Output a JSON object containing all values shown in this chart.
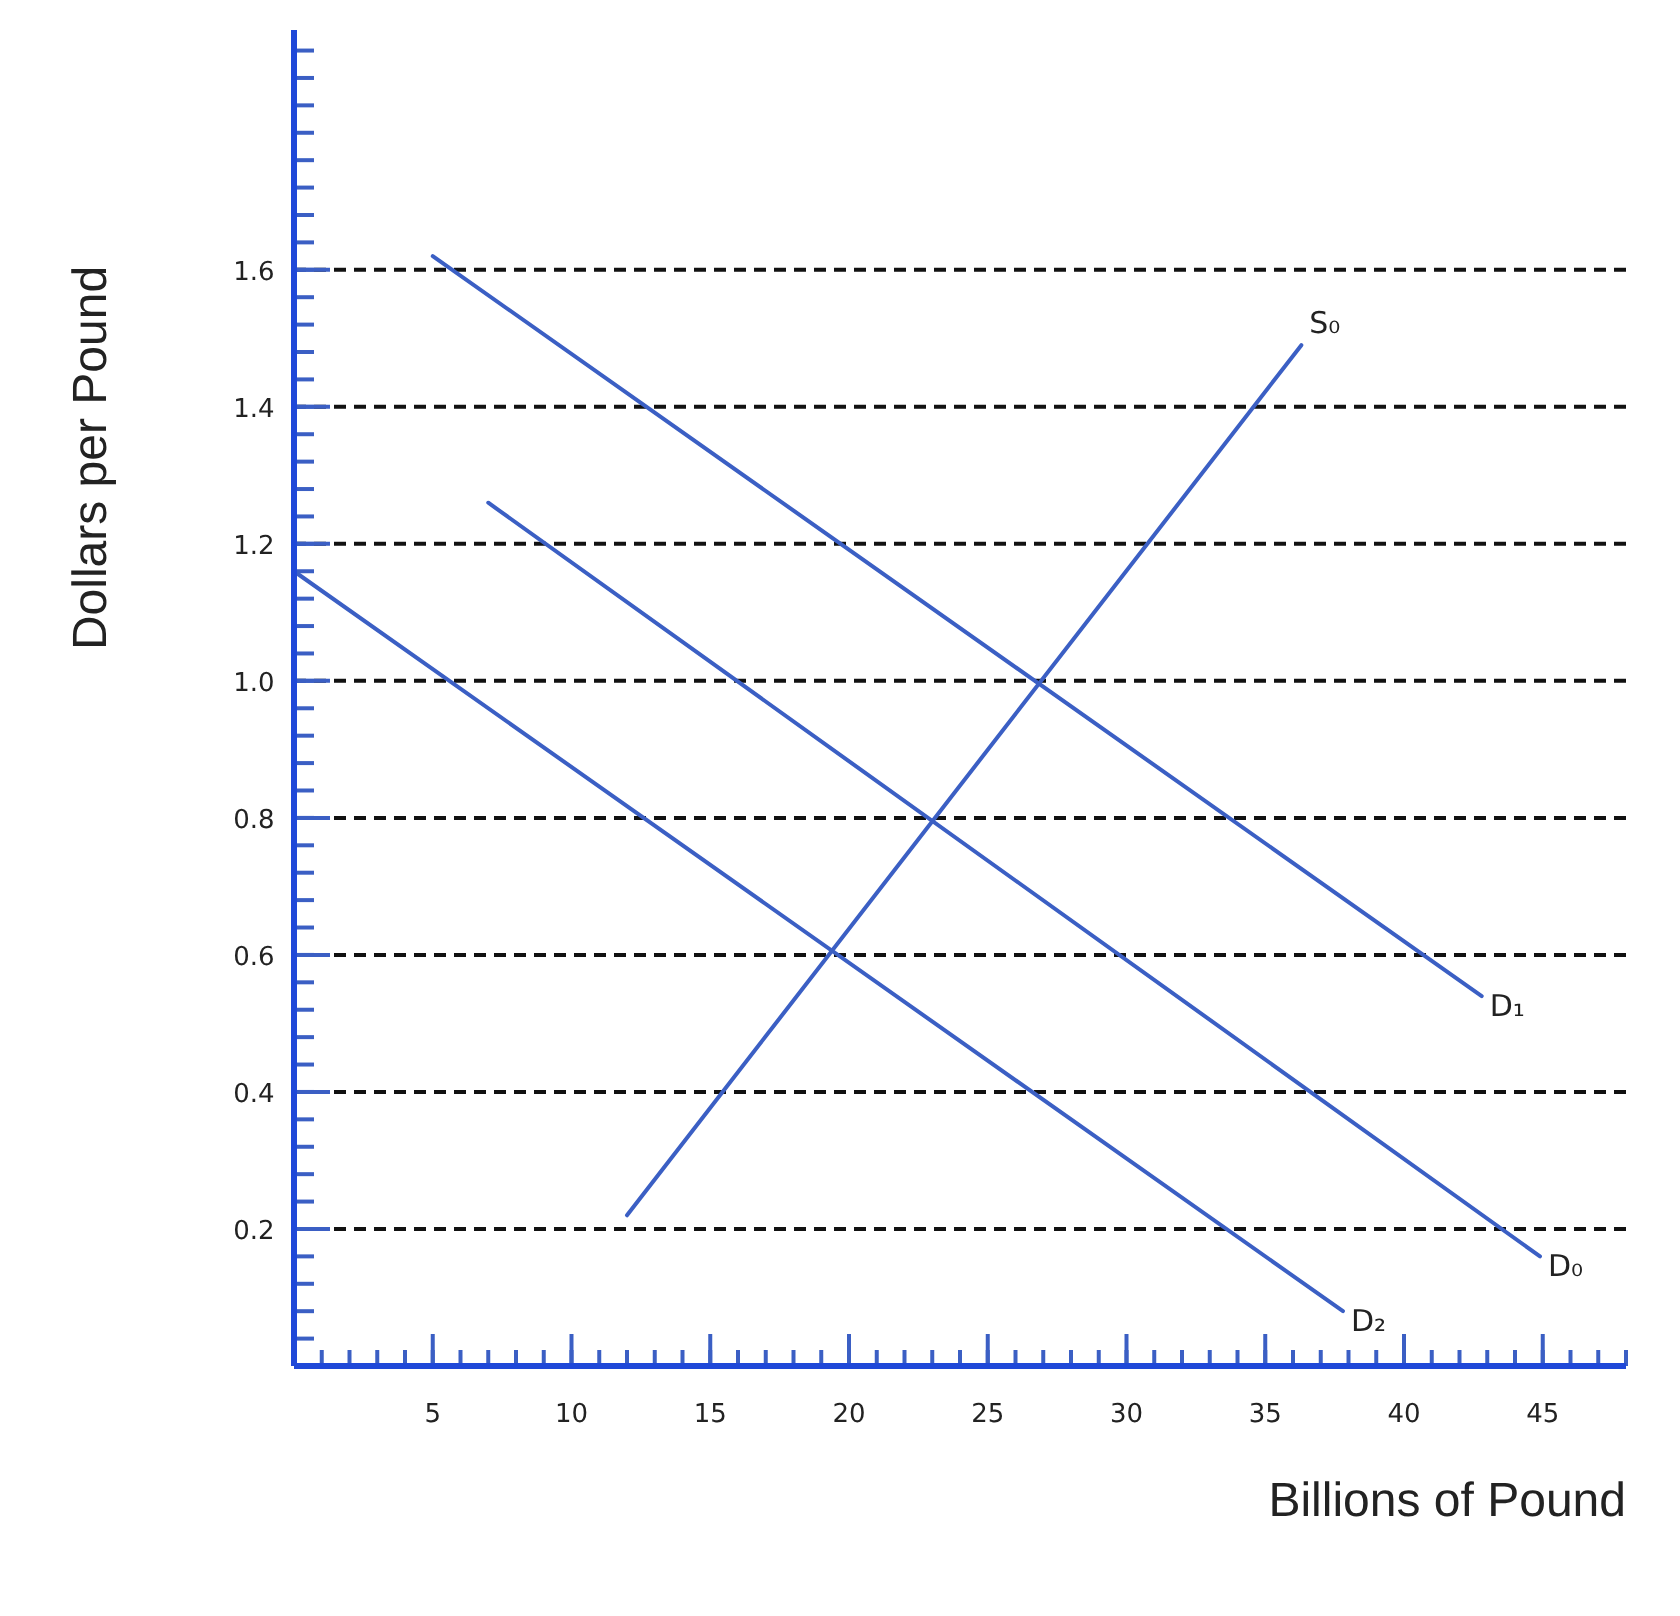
{
  "chart_data": {
    "type": "line",
    "xlabel": "Billions of Pound",
    "ylabel": "Dollars per Pound",
    "xlim": [
      0,
      48
    ],
    "ylim": [
      0,
      1.95
    ],
    "xticks": [
      5,
      10,
      15,
      20,
      25,
      30,
      35,
      40,
      45
    ],
    "yticks": [
      0.2,
      0.4,
      0.6,
      0.8,
      {
        "value": 1,
        "label": "1.0"
      },
      1.2,
      1.4,
      1.6
    ],
    "grid": "y",
    "marker": "none",
    "line_style": "solid",
    "series": [
      {
        "name": "D₁",
        "color": "#3b5fc4",
        "x": [
          5,
          42.8
        ],
        "values": [
          1.62,
          0.54
        ]
      },
      {
        "name": "D₀",
        "color": "#3b5fc4",
        "x": [
          7,
          44.9
        ],
        "values": [
          1.26,
          0.16
        ]
      },
      {
        "name": "D₂",
        "color": "#3b5fc4",
        "x": [
          0,
          37.8
        ],
        "values": [
          1.16,
          0.08
        ]
      },
      {
        "name": "S₀",
        "color": "#3b5fc4",
        "x": [
          12,
          36.3
        ],
        "values": [
          0.22,
          1.49
        ]
      }
    ]
  }
}
